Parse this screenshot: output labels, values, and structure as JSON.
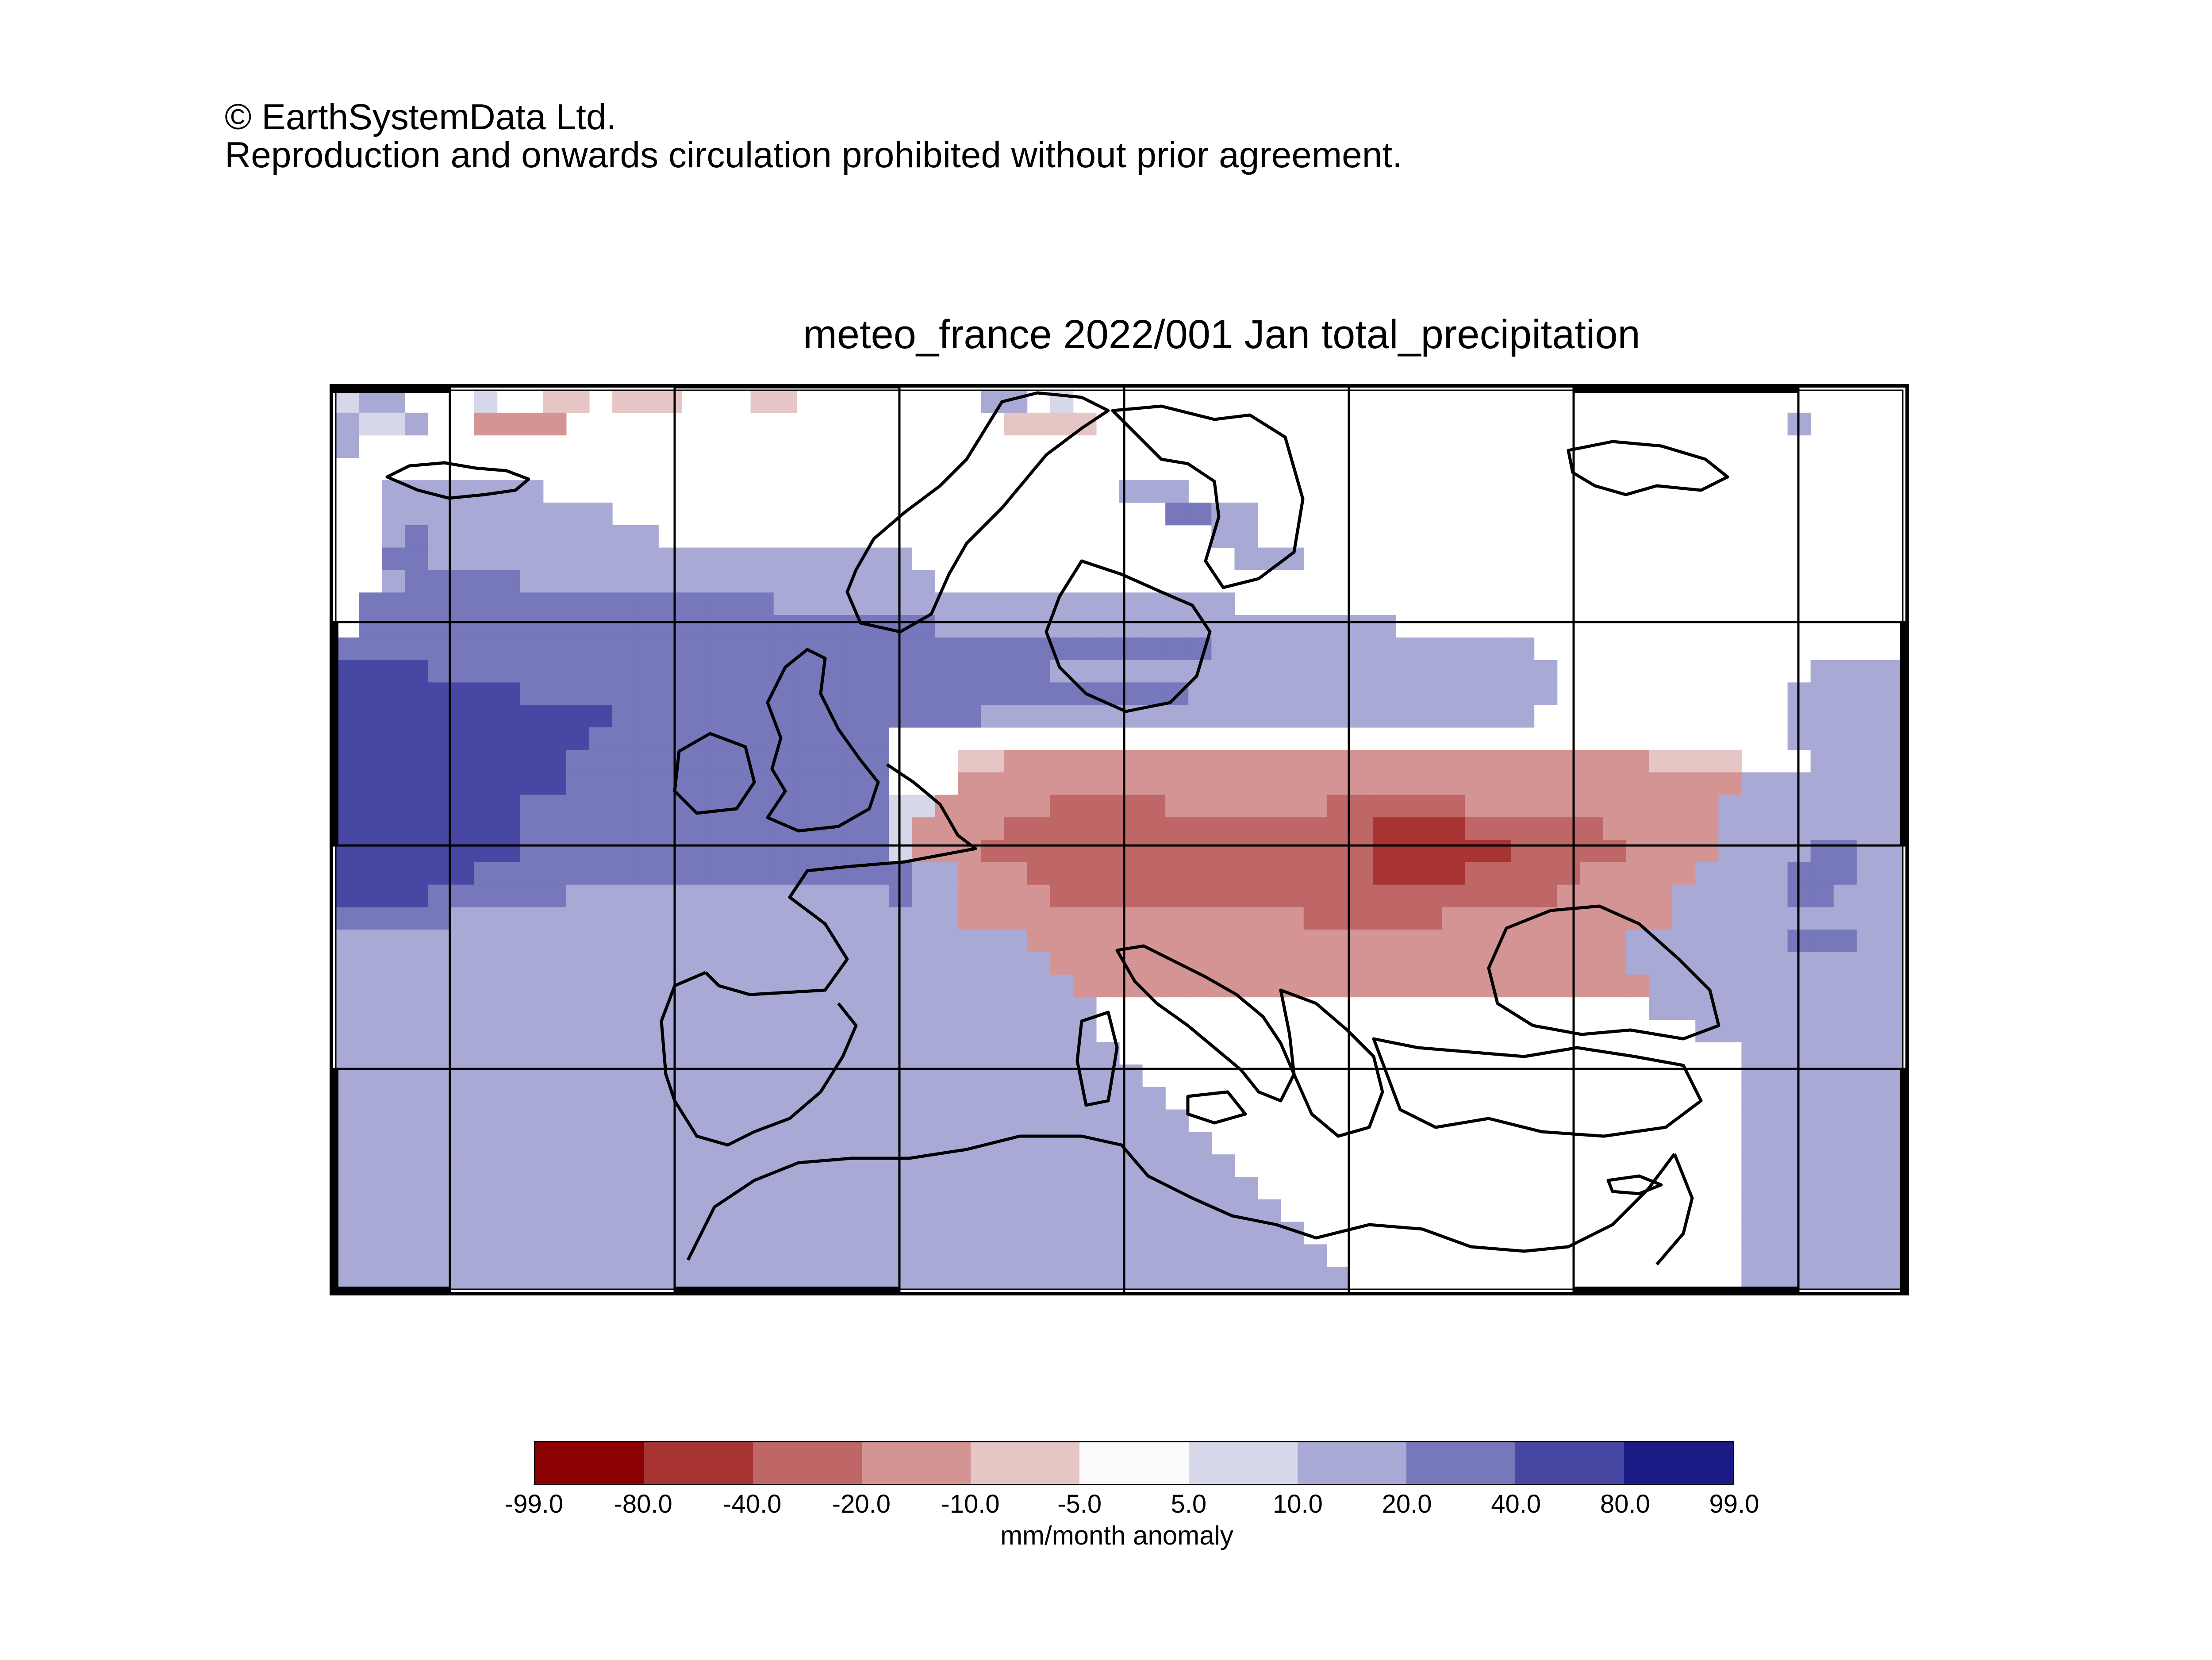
{
  "copyright": {
    "line1": "© EarthSystemData Ltd.",
    "line2": "Reproduction and onwards circulation prohibited without prior agreement."
  },
  "map": {
    "title": "meteo_france 2022/001 Jan total_precipitation",
    "region": "Europe / Mediterranean",
    "colorbar": {
      "label": "mm/month anomaly",
      "ticks": [
        "-99.0",
        "-80.0",
        "-40.0",
        "-20.0",
        "-10.0",
        "-5.0",
        "5.0",
        "10.0",
        "20.0",
        "40.0",
        "80.0",
        "99.0"
      ],
      "colors": [
        "#8b0000",
        "#a83333",
        "#bf6666",
        "#d49494",
        "#e6c5c5",
        "#fbfbfc",
        "#d7d7ea",
        "#a9a9d5",
        "#7777bb",
        "#4848a4",
        "#1b1b86"
      ]
    },
    "anomaly_grid_levels": {
      "legend": "level index: 0=-99..-80, 1=-80..-40, 2=-40..-20, 3=-20..-10, 4=-10..-5, 5=-5..5, 6=5..10, 7=10..20, 8=20..40, 9=40..80, 10=80..99",
      "rows": [
        "67755565544544455544555555557756555555555555555555555555555555555555",
        "76675533335555555555555555555444455555555555555555555555555555575555",
        "75555555555555555555555555555555555555555555555555555555555555555555",
        "55555555555555555555555555555555555555555555555555555555555555555555",
        "55777777755555555555555555555555557775555555555555555555555555555555",
        "55777777777755555555555555555555555588775555555555555555555555555555",
        "55787777777777555555555555555555555555775555555555555555555555555555",
        "55887777777777777777777775555555555555577755555555555555555555555555",
        "55788888777777777777777777555555555555555555555555555555555555555555",
        "58888888888888888887777777777777777777755555555555555555555555555555",
        "58888888888888888888888888777777777777777777775555555555555555555555",
        "88888888888888888888888888888888888888777777777777775555555555555555",
        "99998888888888888888888888888887777777777777777777777555555555557777",
        "99999999888888888888888888888888888887777777777777777555555555577777",
        "99999999999988888888888888887777777777777777777777775555555555577777",
        "99999999999888888888888855555555555555555555555555555555555555577777",
        "99999999998888888888888855544333333333333333333333333333344445557777",
        "99999999998888888888888855533333333333333333333333333333333337777777",
        "99999999888888888888888866333332222233333332222223333333333377777777",
        "99999999888888888888888863333222222222222222211112222223333377777777",
        "99999999888888888888888863332222222222222222211111122222333377778877",
        "99999988888888888888888887733322222222222222211112222233333777788877",
        "99998888887777777777777787733332222222222222222222222333337777788777",
        "88888777777777777777777777733333333333333322222233333333337777777777",
        "77777777777777777777777777777733333333333333333333333333777777788877",
        "77777777777777777777777777777773333333333333333333333333777777777777",
        "77777777777777777777777777777777333333333333333333333333377777777777",
        "77777777777777777777777777777777755555555555555555555555577777777777",
        "77777777777777777777777777777777755555555555555555555555555777777777",
        "77777777777777777777777777777777775555555555555555555555555557777777",
        "77777777777777777777777777777777777555555555555555555555555557777777",
        "77777777777777777777777777777777777755555555555555555555555557777777",
        "77777777777777777777777777777777777775555555555555555555555557777777",
        "77777777777777777777777777777777777777555555555555555555555557777777",
        "77777777777777777777777777777777777777755555555555555555555557777777",
        "77777777777777777777777777777777777777775555555555555555555557777777",
        "77777777777777777777777777777777777777777555555555555555555557777777",
        "77777777777777777777777777777777777777777755555555555555555557777777",
        "77777777777777777777777777777777777777777775555555555555555557777777",
        "77777777777777777777777777777777777777777777555555555555555557777777"
      ]
    }
  }
}
